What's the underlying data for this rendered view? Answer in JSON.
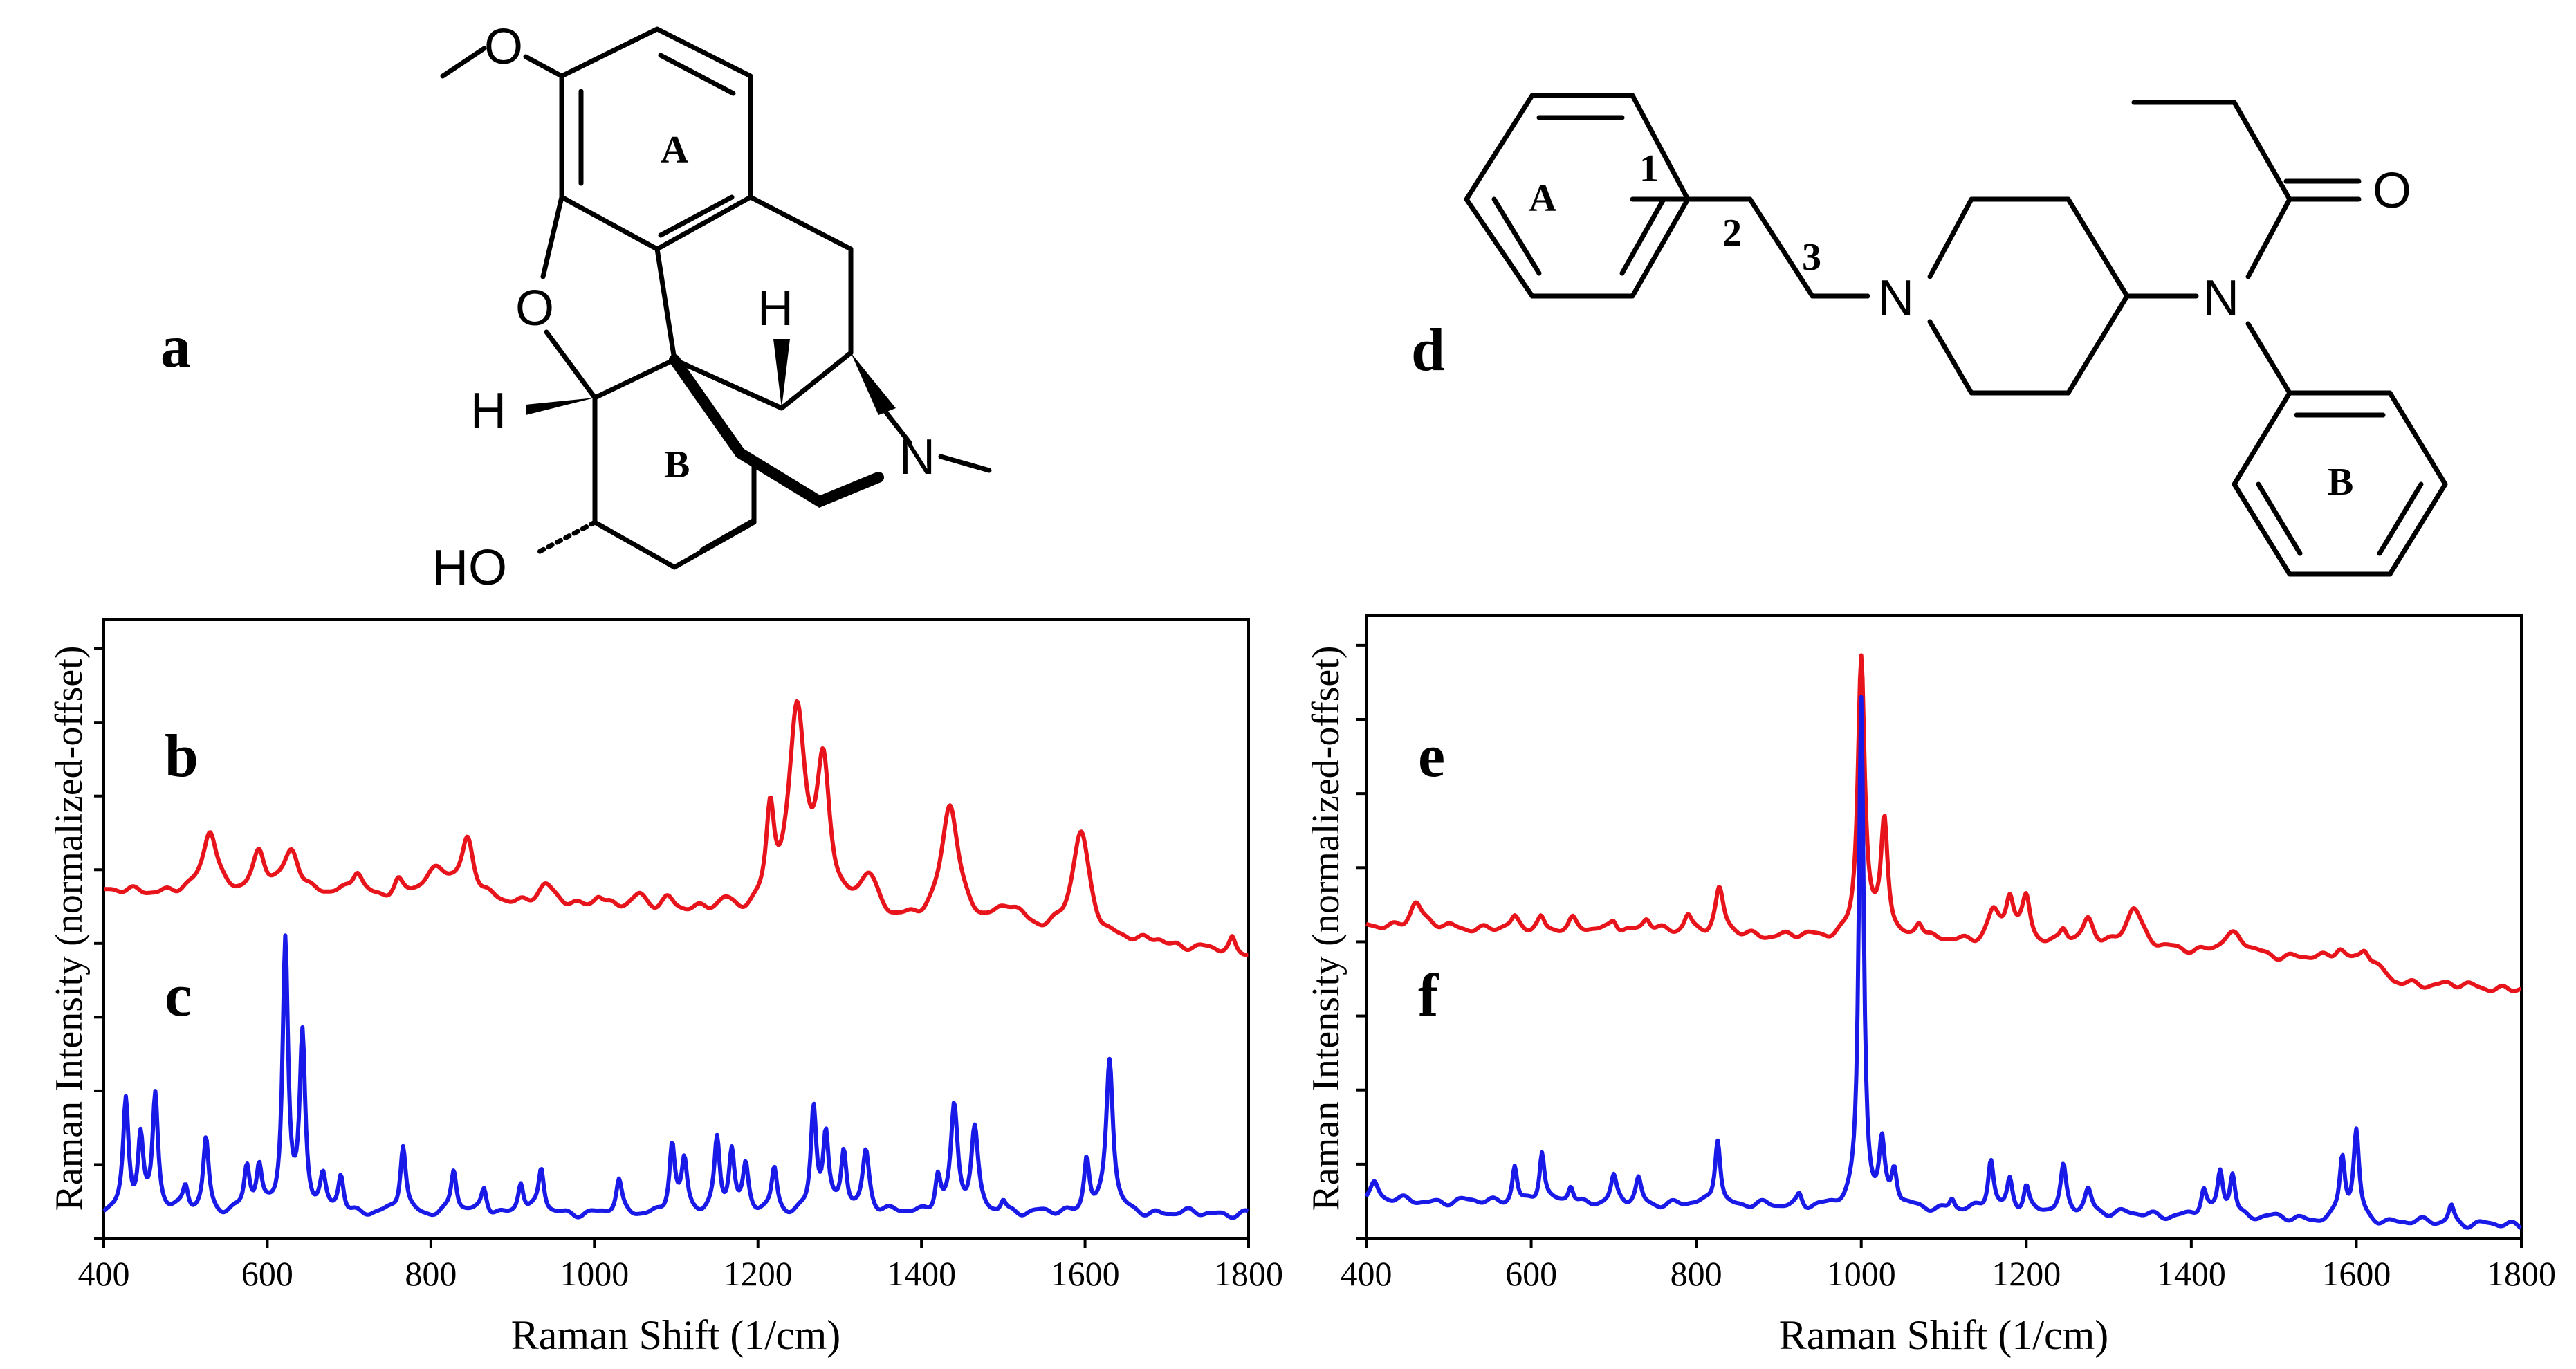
{
  "panel_labels": {
    "a": "a",
    "b": "b",
    "c": "c",
    "d": "d",
    "e": "e",
    "f": "f"
  },
  "structure_a": {
    "ring_labels": [
      "A",
      "B"
    ],
    "atoms": [
      "O",
      "O",
      "H",
      "H",
      "N",
      "HO"
    ]
  },
  "structure_d": {
    "ring_labels": [
      "A",
      "B"
    ],
    "chain_numbers": [
      "1",
      "2",
      "3"
    ],
    "atoms": [
      "N",
      "N",
      "O"
    ]
  },
  "colors": {
    "red_spectrum": "#e8141b",
    "blue_spectrum": "#1a1ae8"
  },
  "chart_data": [
    {
      "type": "line",
      "xlabel": "Raman Shift (1/cm)",
      "ylabel": "Raman Intensity (normalized-offset)",
      "xlim": [
        400,
        1800
      ],
      "ylim": [
        0,
        1.0
      ],
      "x_ticks": [
        400,
        600,
        800,
        1000,
        1200,
        1400,
        1600,
        1800
      ],
      "grid": false,
      "series": [
        {
          "name": "b",
          "color": "#e8141b",
          "baseline": 0.56,
          "offset_end": -0.1,
          "peaks": [
            {
              "x": 530,
              "h": 0.1,
              "w": 10
            },
            {
              "x": 590,
              "h": 0.06,
              "w": 9
            },
            {
              "x": 630,
              "h": 0.07,
              "w": 12
            },
            {
              "x": 710,
              "h": 0.04,
              "w": 8
            },
            {
              "x": 760,
              "h": 0.02,
              "w": 6
            },
            {
              "x": 810,
              "h": 0.05,
              "w": 20
            },
            {
              "x": 845,
              "h": 0.09,
              "w": 9
            },
            {
              "x": 940,
              "h": 0.03,
              "w": 12
            },
            {
              "x": 1005,
              "h": 0.02,
              "w": 8
            },
            {
              "x": 1055,
              "h": 0.02,
              "w": 10
            },
            {
              "x": 1090,
              "h": 0.02,
              "w": 10
            },
            {
              "x": 1160,
              "h": 0.02,
              "w": 12
            },
            {
              "x": 1215,
              "h": 0.15,
              "w": 6
            },
            {
              "x": 1248,
              "h": 0.33,
              "w": 12
            },
            {
              "x": 1280,
              "h": 0.23,
              "w": 10
            },
            {
              "x": 1335,
              "h": 0.07,
              "w": 14
            },
            {
              "x": 1435,
              "h": 0.2,
              "w": 13
            },
            {
              "x": 1510,
              "h": 0.04,
              "w": 20
            },
            {
              "x": 1595,
              "h": 0.17,
              "w": 13
            },
            {
              "x": 1690,
              "h": 0.01,
              "w": 10
            },
            {
              "x": 1780,
              "h": 0.02,
              "w": 4
            }
          ]
        },
        {
          "name": "c",
          "color": "#1a1ae8",
          "baseline": 0.04,
          "offset_end": 0.0,
          "peaks": [
            {
              "x": 427,
              "h": 0.18,
              "w": 4
            },
            {
              "x": 445,
              "h": 0.12,
              "w": 4
            },
            {
              "x": 463,
              "h": 0.19,
              "w": 4
            },
            {
              "x": 500,
              "h": 0.04,
              "w": 4
            },
            {
              "x": 525,
              "h": 0.12,
              "w": 4
            },
            {
              "x": 575,
              "h": 0.07,
              "w": 4
            },
            {
              "x": 590,
              "h": 0.07,
              "w": 4
            },
            {
              "x": 622,
              "h": 0.44,
              "w": 4
            },
            {
              "x": 643,
              "h": 0.28,
              "w": 4
            },
            {
              "x": 668,
              "h": 0.05,
              "w": 4
            },
            {
              "x": 690,
              "h": 0.06,
              "w": 4
            },
            {
              "x": 766,
              "h": 0.11,
              "w": 4
            },
            {
              "x": 828,
              "h": 0.07,
              "w": 4
            },
            {
              "x": 865,
              "h": 0.04,
              "w": 4
            },
            {
              "x": 910,
              "h": 0.05,
              "w": 4
            },
            {
              "x": 935,
              "h": 0.07,
              "w": 4
            },
            {
              "x": 1030,
              "h": 0.05,
              "w": 4
            },
            {
              "x": 1095,
              "h": 0.11,
              "w": 4
            },
            {
              "x": 1110,
              "h": 0.08,
              "w": 4
            },
            {
              "x": 1150,
              "h": 0.12,
              "w": 4
            },
            {
              "x": 1168,
              "h": 0.1,
              "w": 4
            },
            {
              "x": 1185,
              "h": 0.07,
              "w": 4
            },
            {
              "x": 1220,
              "h": 0.07,
              "w": 4
            },
            {
              "x": 1268,
              "h": 0.17,
              "w": 4
            },
            {
              "x": 1283,
              "h": 0.12,
              "w": 4
            },
            {
              "x": 1305,
              "h": 0.1,
              "w": 4
            },
            {
              "x": 1332,
              "h": 0.1,
              "w": 5
            },
            {
              "x": 1420,
              "h": 0.06,
              "w": 4
            },
            {
              "x": 1440,
              "h": 0.17,
              "w": 5
            },
            {
              "x": 1465,
              "h": 0.13,
              "w": 5
            },
            {
              "x": 1500,
              "h": 0.02,
              "w": 4
            },
            {
              "x": 1602,
              "h": 0.09,
              "w": 4
            },
            {
              "x": 1630,
              "h": 0.25,
              "w": 5
            }
          ]
        }
      ]
    },
    {
      "type": "line",
      "xlabel": "Raman Shift (1/cm)",
      "ylabel": "Raman Intensity (normalized-offset)",
      "xlim": [
        400,
        1800
      ],
      "ylim": [
        0,
        1.0
      ],
      "x_ticks": [
        400,
        600,
        800,
        1000,
        1200,
        1400,
        1600,
        1800
      ],
      "grid": false,
      "series": [
        {
          "name": "e",
          "color": "#e8141b",
          "baseline": 0.5,
          "offset_end": -0.07,
          "peaks": [
            {
              "x": 460,
              "h": 0.04,
              "w": 9
            },
            {
              "x": 580,
              "h": 0.015,
              "w": 5
            },
            {
              "x": 612,
              "h": 0.02,
              "w": 5
            },
            {
              "x": 650,
              "h": 0.015,
              "w": 5
            },
            {
              "x": 700,
              "h": 0.02,
              "w": 6
            },
            {
              "x": 740,
              "h": 0.02,
              "w": 6
            },
            {
              "x": 790,
              "h": 0.03,
              "w": 6
            },
            {
              "x": 828,
              "h": 0.07,
              "w": 6
            },
            {
              "x": 1000,
              "h": 0.45,
              "w": 5
            },
            {
              "x": 1028,
              "h": 0.19,
              "w": 5
            },
            {
              "x": 1070,
              "h": 0.03,
              "w": 6
            },
            {
              "x": 1160,
              "h": 0.05,
              "w": 9
            },
            {
              "x": 1180,
              "h": 0.07,
              "w": 6
            },
            {
              "x": 1200,
              "h": 0.07,
              "w": 6
            },
            {
              "x": 1245,
              "h": 0.03,
              "w": 6
            },
            {
              "x": 1275,
              "h": 0.04,
              "w": 8
            },
            {
              "x": 1330,
              "h": 0.07,
              "w": 12
            },
            {
              "x": 1450,
              "h": 0.03,
              "w": 20
            },
            {
              "x": 1580,
              "h": 0.02,
              "w": 8
            },
            {
              "x": 1610,
              "h": 0.02,
              "w": 6
            }
          ]
        },
        {
          "name": "f",
          "color": "#1a1ae8",
          "baseline": 0.06,
          "offset_end": -0.04,
          "peaks": [
            {
              "x": 410,
              "h": 0.03,
              "w": 6
            },
            {
              "x": 580,
              "h": 0.06,
              "w": 3.5
            },
            {
              "x": 613,
              "h": 0.08,
              "w": 3.5
            },
            {
              "x": 648,
              "h": 0.03,
              "w": 4
            },
            {
              "x": 700,
              "h": 0.04,
              "w": 4
            },
            {
              "x": 730,
              "h": 0.04,
              "w": 4
            },
            {
              "x": 826,
              "h": 0.11,
              "w": 4
            },
            {
              "x": 925,
              "h": 0.02,
              "w": 4
            },
            {
              "x": 1000,
              "h": 0.82,
              "w": 3.5
            },
            {
              "x": 1025,
              "h": 0.1,
              "w": 4
            },
            {
              "x": 1040,
              "h": 0.06,
              "w": 4
            },
            {
              "x": 1110,
              "h": 0.02,
              "w": 4
            },
            {
              "x": 1157,
              "h": 0.08,
              "w": 4
            },
            {
              "x": 1180,
              "h": 0.05,
              "w": 4
            },
            {
              "x": 1200,
              "h": 0.04,
              "w": 4
            },
            {
              "x": 1245,
              "h": 0.07,
              "w": 4
            },
            {
              "x": 1275,
              "h": 0.04,
              "w": 5
            },
            {
              "x": 1415,
              "h": 0.04,
              "w": 4
            },
            {
              "x": 1435,
              "h": 0.07,
              "w": 4
            },
            {
              "x": 1450,
              "h": 0.07,
              "w": 4
            },
            {
              "x": 1583,
              "h": 0.1,
              "w": 4
            },
            {
              "x": 1600,
              "h": 0.14,
              "w": 4
            },
            {
              "x": 1715,
              "h": 0.03,
              "w": 4
            }
          ]
        }
      ]
    }
  ]
}
